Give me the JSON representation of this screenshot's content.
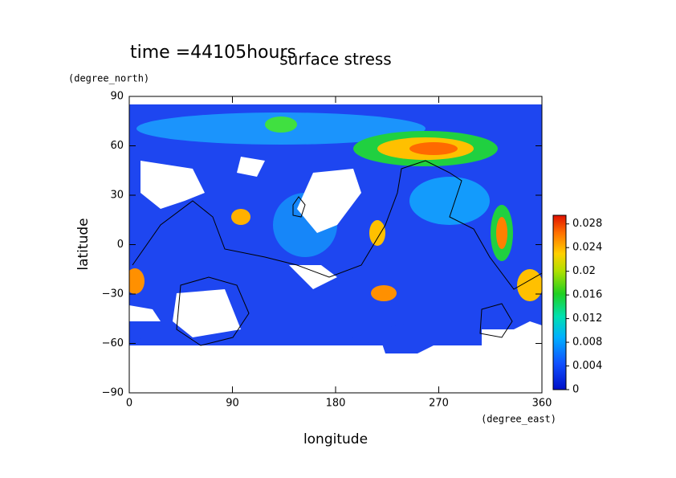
{
  "chart_data": {
    "type": "contour",
    "title": "surface stress",
    "subtitle": "time =44105hours",
    "xlabel": "longitude",
    "ylabel": "latitude",
    "xunit": "(degree_east)",
    "yunit": "(degree_north)",
    "xlim": [
      0,
      360
    ],
    "ylim": [
      -90,
      90
    ],
    "xticks": [
      0,
      90,
      180,
      270,
      360
    ],
    "yticks": [
      90,
      60,
      30,
      0,
      {
        "value": -30,
        "label": "−30"
      },
      {
        "value": -60,
        "label": "−60"
      },
      {
        "value": -90,
        "label": "−90"
      }
    ],
    "clim": [
      0,
      0.03
    ],
    "cticks": [
      0,
      0.004,
      0.008,
      0.012,
      0.016,
      0.02,
      0.024,
      0.028
    ]
  }
}
